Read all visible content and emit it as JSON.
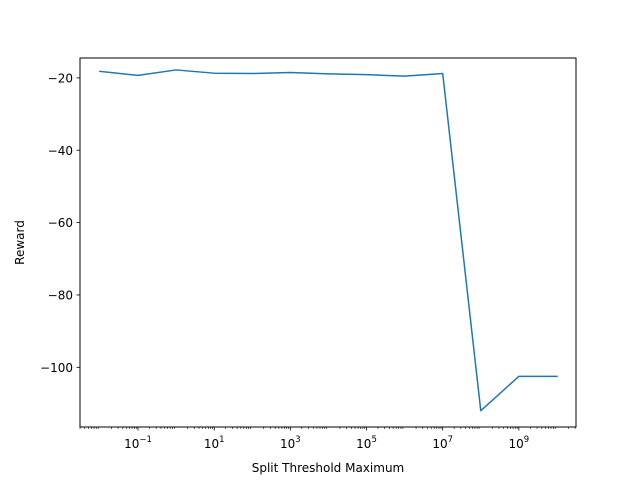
{
  "chart_data": {
    "type": "line",
    "title": "",
    "xlabel": "Split Threshold Maximum",
    "ylabel": "Reward",
    "xscale": "log",
    "grid": false,
    "legend": "none",
    "xlim": [
      0.003,
      31622776601.7
    ],
    "ylim": [
      -116.5,
      -14.5
    ],
    "xticks": [
      {
        "value": 0.1,
        "base": "10",
        "exp": "−1"
      },
      {
        "value": 10,
        "base": "10",
        "exp": "1"
      },
      {
        "value": 1000,
        "base": "10",
        "exp": "3"
      },
      {
        "value": 100000,
        "base": "10",
        "exp": "5"
      },
      {
        "value": 10000000,
        "base": "10",
        "exp": "7"
      },
      {
        "value": 1000000000,
        "base": "10",
        "exp": "9"
      }
    ],
    "yticks": [
      {
        "value": -20,
        "label": "−20"
      },
      {
        "value": -40,
        "label": "−40"
      },
      {
        "value": -60,
        "label": "−60"
      },
      {
        "value": -80,
        "label": "−80"
      },
      {
        "value": -100,
        "label": "−100"
      }
    ],
    "series": [
      {
        "color": "#1f77b4",
        "x": [
          0.01,
          0.1,
          1,
          10,
          100,
          1000,
          10000,
          100000,
          1000000,
          10000000,
          100000000,
          1000000000,
          10000000000
        ],
        "y": [
          -18.2,
          -19.3,
          -17.8,
          -18.7,
          -18.8,
          -18.5,
          -18.9,
          -19.1,
          -19.5,
          -18.8,
          -112.0,
          -102.5,
          -102.5
        ]
      }
    ]
  }
}
